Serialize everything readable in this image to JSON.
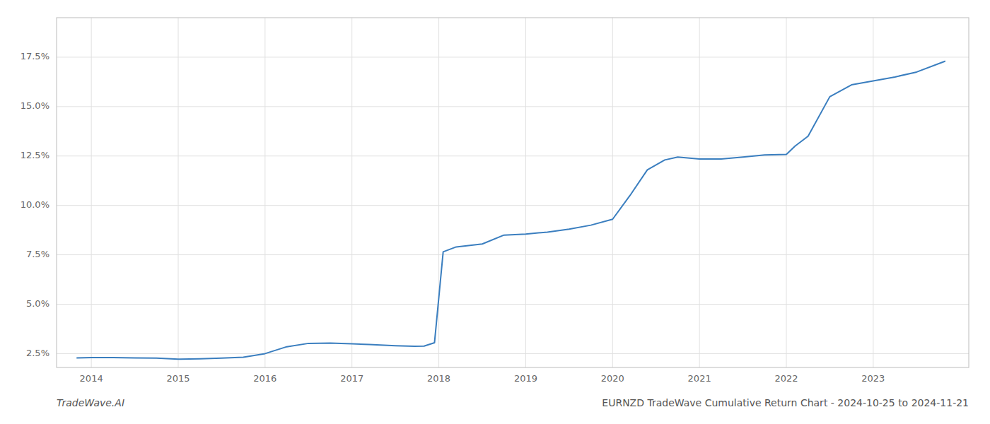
{
  "chart_data": {
    "type": "line",
    "title": "EURNZD TradeWave Cumulative Return Chart - 2024-10-25 to 2024-11-21",
    "annotations": [
      "TradeWave.AI"
    ],
    "x": [
      2013.83,
      2014.0,
      2014.25,
      2014.5,
      2014.75,
      2015.0,
      2015.25,
      2015.5,
      2015.75,
      2016.0,
      2016.25,
      2016.5,
      2016.75,
      2017.0,
      2017.2,
      2017.5,
      2017.72,
      2017.83,
      2017.95,
      2018.05,
      2018.2,
      2018.5,
      2018.75,
      2019.0,
      2019.25,
      2019.5,
      2019.75,
      2020.0,
      2020.2,
      2020.4,
      2020.6,
      2020.75,
      2021.0,
      2021.25,
      2021.5,
      2021.75,
      2022.0,
      2022.1,
      2022.25,
      2022.5,
      2022.75,
      2023.0,
      2023.25,
      2023.5,
      2023.83
    ],
    "values": [
      2.28,
      2.3,
      2.3,
      2.28,
      2.27,
      2.22,
      2.24,
      2.27,
      2.32,
      2.5,
      2.85,
      3.02,
      3.03,
      3.0,
      2.96,
      2.9,
      2.87,
      2.88,
      3.05,
      7.65,
      7.9,
      8.05,
      8.5,
      8.55,
      8.65,
      8.8,
      9.0,
      9.3,
      10.5,
      11.8,
      12.3,
      12.45,
      12.35,
      12.35,
      12.45,
      12.55,
      12.58,
      13.0,
      13.5,
      15.5,
      16.1,
      16.3,
      16.5,
      16.75,
      17.3
    ],
    "color": "#3a7ebf",
    "xlim": [
      2013.6,
      2024.1
    ],
    "ylim": [
      1.8,
      19.5
    ],
    "xticks": [
      2014,
      2015,
      2016,
      2017,
      2018,
      2019,
      2020,
      2021,
      2022,
      2023
    ],
    "yticks": [
      {
        "value": 2.5,
        "label": "2.5%"
      },
      {
        "value": 5.0,
        "label": "5.0%"
      },
      {
        "value": 7.5,
        "label": "7.5%"
      },
      {
        "value": 10.0,
        "label": "10.0%"
      },
      {
        "value": 12.5,
        "label": "12.5%"
      },
      {
        "value": 15.0,
        "label": "15.0%"
      },
      {
        "value": 17.5,
        "label": "17.5%"
      }
    ],
    "grid": true
  }
}
